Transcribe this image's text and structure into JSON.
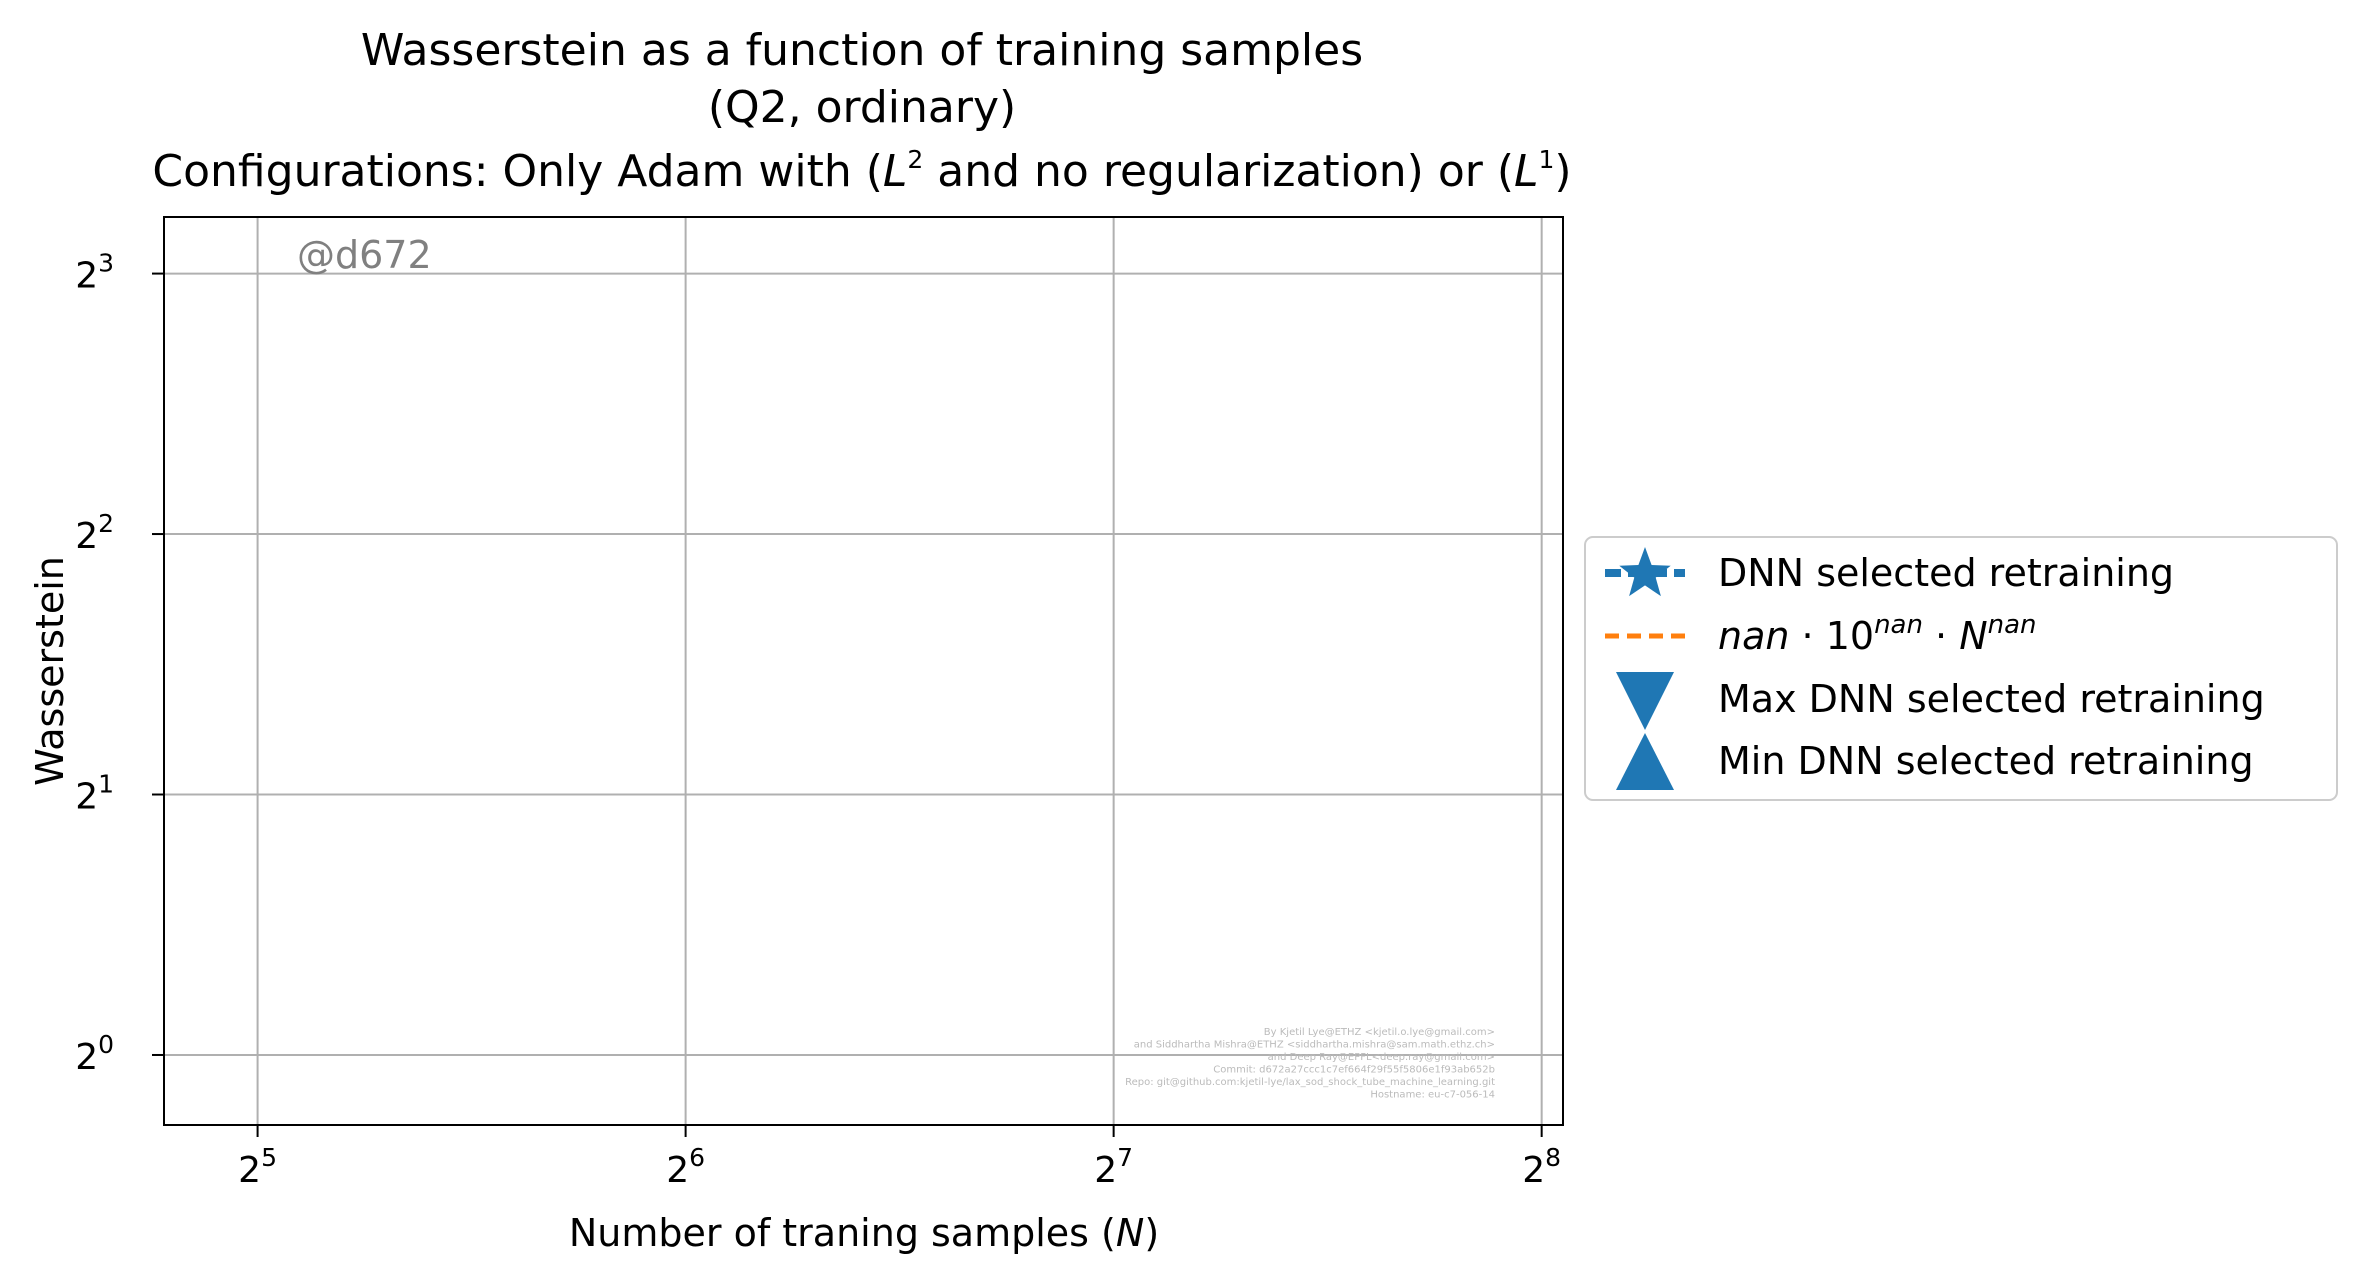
{
  "chart_data": {
    "type": "line",
    "title_lines": [
      "Wasserstein as a function of training samples",
      "(Q2, ordinary)"
    ],
    "title_config": {
      "prefix": "Configurations: Only Adam with (",
      "l2_base": "L",
      "l2_exp": "2",
      "middle": " and no regularization) or (",
      "l1_base": "L",
      "l1_exp": "1",
      "suffix": ")"
    },
    "xlabel_parts": {
      "text": "Number of traning samples (",
      "var": "N",
      "close": ")"
    },
    "ylabel": "Wasserstein",
    "xscale": "log2",
    "yscale": "log2",
    "xlim": [
      27.5,
      265
    ],
    "ylim": [
      0.83,
      9.3
    ],
    "x_ticks": [
      {
        "value": 32,
        "base": "2",
        "exp": "5"
      },
      {
        "value": 64,
        "base": "2",
        "exp": "6"
      },
      {
        "value": 128,
        "base": "2",
        "exp": "7"
      },
      {
        "value": 256,
        "base": "2",
        "exp": "8"
      }
    ],
    "y_ticks": [
      {
        "value": 1,
        "base": "2",
        "exp": "0"
      },
      {
        "value": 2,
        "base": "2",
        "exp": "1"
      },
      {
        "value": 4,
        "base": "2",
        "exp": "2"
      },
      {
        "value": 8,
        "base": "2",
        "exp": "3"
      }
    ],
    "grid": true,
    "series": [],
    "legend": {
      "placement": "right",
      "entries": [
        {
          "label": "DNN selected retraining",
          "marker": "star",
          "color": "#1f77b4"
        },
        {
          "label": "nan · 10^nan · N^nan",
          "marker": "dashed-line",
          "color": "#ff7f0e",
          "parts": {
            "a": "nan",
            "dot1": " · 10",
            "b": "nan",
            "dot2": " · ",
            "c": "N",
            "d": "nan"
          }
        },
        {
          "label": "Max DNN selected retraining",
          "marker": "triangle-down",
          "color": "#1f77b4"
        },
        {
          "label": "Min DNN selected retraining",
          "marker": "triangle-up",
          "color": "#1f77b4"
        }
      ]
    },
    "annotations": {
      "commit_tag": "@d672",
      "credits": [
        "By Kjetil Lye@ETHZ <kjetil.o.lye@gmail.com>",
        "and Siddhartha Mishra@ETHZ <siddhartha.mishra@sam.math.ethz.ch>",
        "and Deep Ray@EPFL<deep.ray@gmail.com>",
        "Commit: d672a27ccc1c7ef664f29f55f5806e1f93ab652b",
        "Repo: git@github.com:kjetil-lye/lax_sod_shock_tube_machine_learning.git",
        "Hostname: eu-c7-056-14"
      ]
    }
  },
  "colors": {
    "series_blue": "#1f77b4",
    "fit_orange": "#ff7f0e",
    "grid": "#b0b0b0",
    "watermark": "#808080"
  }
}
